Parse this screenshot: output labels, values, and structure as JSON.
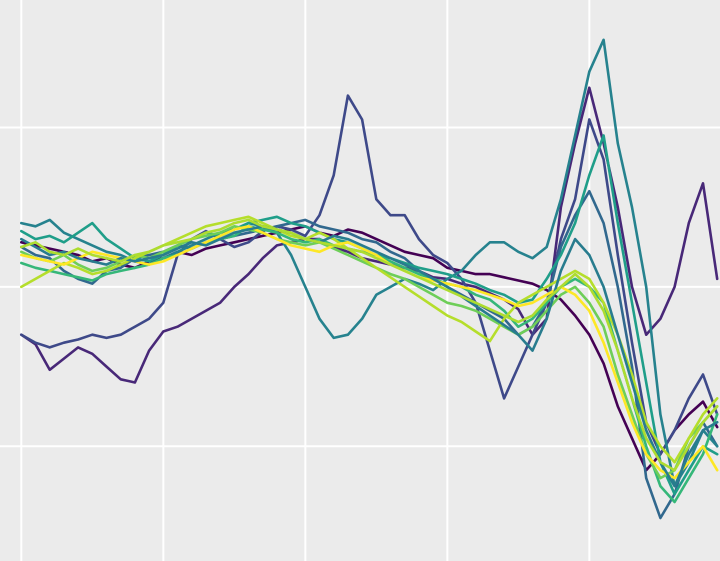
{
  "chart_data": {
    "type": "line",
    "title": "",
    "xlabel": "",
    "ylabel": "",
    "grid": true,
    "legend": "none",
    "background": "#ebebeb",
    "grid_color": "#ffffff",
    "xlim": [
      -0.15,
      4.92
    ],
    "ylim": [
      -1.72,
      1.8
    ],
    "x_gridlines": [
      0,
      1,
      2,
      3,
      4
    ],
    "y_gridlines": [
      -1,
      0,
      1
    ],
    "x": [
      0.0,
      0.1,
      0.2,
      0.3,
      0.4,
      0.5,
      0.6,
      0.7,
      0.8,
      0.9,
      1.0,
      1.1,
      1.2,
      1.3,
      1.4,
      1.5,
      1.6,
      1.7,
      1.8,
      1.9,
      2.0,
      2.1,
      2.2,
      2.3,
      2.4,
      2.5,
      2.6,
      2.7,
      2.8,
      2.9,
      3.0,
      3.1,
      3.2,
      3.3,
      3.4,
      3.5,
      3.6,
      3.7,
      3.8,
      3.9,
      4.0,
      4.1,
      4.2,
      4.3,
      4.4,
      4.5,
      4.6,
      4.7,
      4.8,
      4.9
    ],
    "series": [
      {
        "color": "#440154",
        "values": [
          0.28,
          0.26,
          0.24,
          0.22,
          0.2,
          0.16,
          0.18,
          0.14,
          0.12,
          0.16,
          0.18,
          0.22,
          0.2,
          0.24,
          0.26,
          0.28,
          0.3,
          0.32,
          0.34,
          0.36,
          0.38,
          0.34,
          0.32,
          0.36,
          0.34,
          0.3,
          0.26,
          0.22,
          0.2,
          0.18,
          0.12,
          0.1,
          0.08,
          0.08,
          0.06,
          0.04,
          0.02,
          -0.02,
          -0.08,
          -0.18,
          -0.3,
          -0.48,
          -0.75,
          -0.95,
          -1.15,
          -1.05,
          -0.9,
          -0.8,
          -0.72,
          -0.88
        ]
      },
      {
        "color": "#482878",
        "values": [
          -0.3,
          -0.36,
          -0.52,
          -0.45,
          -0.38,
          -0.42,
          -0.5,
          -0.58,
          -0.6,
          -0.4,
          -0.28,
          -0.25,
          -0.2,
          -0.15,
          -0.1,
          0.0,
          0.08,
          0.18,
          0.26,
          0.28,
          0.3,
          0.3,
          0.25,
          0.22,
          0.18,
          0.16,
          0.14,
          0.12,
          0.1,
          0.06,
          0.05,
          0.02,
          0.0,
          -0.04,
          -0.08,
          -0.14,
          -0.3,
          -0.2,
          0.5,
          0.9,
          1.25,
          0.9,
          0.5,
          0.0,
          -0.3,
          -0.2,
          0.0,
          0.4,
          0.65,
          0.05
        ]
      },
      {
        "color": "#3e4989",
        "values": [
          -0.3,
          -0.35,
          -0.38,
          -0.35,
          -0.33,
          -0.3,
          -0.32,
          -0.3,
          -0.25,
          -0.2,
          -0.1,
          0.2,
          0.3,
          0.35,
          0.3,
          0.25,
          0.28,
          0.35,
          0.38,
          0.36,
          0.32,
          0.45,
          0.7,
          1.2,
          1.05,
          0.55,
          0.45,
          0.45,
          0.3,
          0.2,
          0.15,
          0.05,
          -0.1,
          -0.4,
          -0.7,
          -0.5,
          -0.3,
          -0.1,
          0.3,
          0.55,
          1.05,
          0.8,
          0.2,
          -0.35,
          -0.85,
          -1.05,
          -0.9,
          -0.7,
          -0.55,
          -0.8
        ]
      },
      {
        "color": "#31688e",
        "values": [
          0.25,
          0.2,
          0.18,
          0.1,
          0.05,
          0.02,
          0.1,
          0.12,
          0.18,
          0.2,
          0.22,
          0.26,
          0.24,
          0.28,
          0.3,
          0.32,
          0.34,
          0.36,
          0.38,
          0.4,
          0.42,
          0.38,
          0.36,
          0.34,
          0.3,
          0.28,
          0.22,
          0.18,
          0.1,
          0.05,
          0.0,
          -0.05,
          -0.1,
          -0.15,
          -0.2,
          -0.3,
          -0.25,
          -0.1,
          0.25,
          0.45,
          0.6,
          0.4,
          0.0,
          -0.5,
          -1.2,
          -1.45,
          -1.3,
          -1.0,
          -0.85,
          -1.0
        ]
      },
      {
        "color": "#26828e",
        "values": [
          0.4,
          0.38,
          0.42,
          0.34,
          0.3,
          0.26,
          0.22,
          0.2,
          0.16,
          0.14,
          0.18,
          0.22,
          0.26,
          0.3,
          0.34,
          0.36,
          0.4,
          0.38,
          0.34,
          0.2,
          0.0,
          -0.2,
          -0.32,
          -0.3,
          -0.2,
          -0.05,
          0.0,
          0.05,
          0.02,
          -0.02,
          0.05,
          0.1,
          0.2,
          0.28,
          0.28,
          0.22,
          0.18,
          0.25,
          0.55,
          0.95,
          1.35,
          1.55,
          0.9,
          0.5,
          0.0,
          -0.8,
          -1.25,
          -1.1,
          -0.9,
          -1.0
        ]
      },
      {
        "color": "#1f9e89",
        "values": [
          0.35,
          0.3,
          0.32,
          0.28,
          0.34,
          0.4,
          0.3,
          0.24,
          0.18,
          0.16,
          0.2,
          0.26,
          0.3,
          0.34,
          0.32,
          0.36,
          0.4,
          0.42,
          0.44,
          0.4,
          0.38,
          0.34,
          0.3,
          0.28,
          0.24,
          0.2,
          0.18,
          0.15,
          0.12,
          0.1,
          0.08,
          0.05,
          0.02,
          -0.02,
          -0.05,
          -0.1,
          -0.08,
          0.05,
          0.2,
          0.4,
          0.7,
          0.95,
          0.4,
          -0.1,
          -0.6,
          -1.1,
          -1.3,
          -1.15,
          -1.0,
          -1.05
        ]
      },
      {
        "color": "#35b779",
        "values": [
          0.15,
          0.12,
          0.1,
          0.08,
          0.06,
          0.04,
          0.08,
          0.1,
          0.12,
          0.14,
          0.18,
          0.2,
          0.24,
          0.28,
          0.3,
          0.32,
          0.38,
          0.36,
          0.34,
          0.3,
          0.28,
          0.3,
          0.26,
          0.24,
          0.22,
          0.2,
          0.16,
          0.12,
          0.08,
          0.05,
          0.02,
          0.0,
          -0.05,
          -0.08,
          -0.15,
          -0.25,
          -0.2,
          -0.1,
          0.0,
          0.05,
          0.0,
          -0.1,
          -0.4,
          -0.7,
          -1.0,
          -1.25,
          -1.35,
          -1.2,
          -1.05,
          -0.8
        ]
      },
      {
        "color": "#6ece58",
        "values": [
          0.22,
          0.18,
          0.16,
          0.2,
          0.14,
          0.1,
          0.12,
          0.16,
          0.2,
          0.18,
          0.22,
          0.26,
          0.3,
          0.32,
          0.34,
          0.38,
          0.36,
          0.34,
          0.3,
          0.28,
          0.26,
          0.28,
          0.24,
          0.2,
          0.16,
          0.12,
          0.08,
          0.05,
          0.0,
          -0.05,
          -0.1,
          -0.12,
          -0.15,
          -0.2,
          -0.25,
          -0.3,
          -0.25,
          -0.15,
          -0.05,
          0.0,
          -0.1,
          -0.25,
          -0.55,
          -0.8,
          -1.05,
          -1.2,
          -1.15,
          -0.95,
          -0.85,
          -0.75
        ]
      },
      {
        "color": "#b5de2b",
        "values": [
          0.0,
          0.05,
          0.1,
          0.15,
          0.12,
          0.08,
          0.1,
          0.14,
          0.18,
          0.22,
          0.26,
          0.3,
          0.34,
          0.38,
          0.4,
          0.42,
          0.44,
          0.4,
          0.36,
          0.32,
          0.3,
          0.34,
          0.3,
          0.24,
          0.18,
          0.12,
          0.06,
          0.0,
          -0.06,
          -0.12,
          -0.18,
          -0.22,
          -0.28,
          -0.34,
          -0.2,
          -0.1,
          -0.05,
          0.0,
          0.05,
          0.1,
          0.05,
          -0.1,
          -0.3,
          -0.55,
          -0.85,
          -1.0,
          -1.1,
          -0.95,
          -0.8,
          -0.7
        ]
      },
      {
        "color": "#fde725",
        "values": [
          0.2,
          0.18,
          0.16,
          0.14,
          0.18,
          0.22,
          0.2,
          0.18,
          0.16,
          0.14,
          0.16,
          0.2,
          0.24,
          0.28,
          0.32,
          0.36,
          0.38,
          0.34,
          0.3,
          0.26,
          0.24,
          0.22,
          0.26,
          0.28,
          0.24,
          0.2,
          0.14,
          0.1,
          0.06,
          0.04,
          0.02,
          0.0,
          -0.02,
          -0.05,
          -0.08,
          -0.12,
          -0.1,
          -0.05,
          0.0,
          -0.05,
          -0.15,
          -0.35,
          -0.6,
          -0.85,
          -1.05,
          -1.15,
          -1.2,
          -1.1,
          -1.0,
          -1.15
        ]
      },
      {
        "color": "#287c8e",
        "values": [
          0.3,
          0.25,
          0.2,
          0.22,
          0.18,
          0.16,
          0.14,
          0.18,
          0.16,
          0.18,
          0.2,
          0.24,
          0.28,
          0.26,
          0.3,
          0.34,
          0.36,
          0.38,
          0.36,
          0.34,
          0.3,
          0.28,
          0.32,
          0.3,
          0.26,
          0.22,
          0.18,
          0.14,
          0.1,
          0.05,
          0.0,
          -0.06,
          -0.12,
          -0.18,
          -0.24,
          -0.3,
          -0.4,
          -0.2,
          0.1,
          0.3,
          0.2,
          0.0,
          -0.3,
          -0.6,
          -0.9,
          -1.1,
          -1.25,
          -1.05,
          -0.9,
          -0.85
        ]
      },
      {
        "color": "#addc30",
        "values": [
          0.25,
          0.28,
          0.22,
          0.2,
          0.24,
          0.2,
          0.18,
          0.16,
          0.2,
          0.22,
          0.26,
          0.28,
          0.3,
          0.34,
          0.36,
          0.4,
          0.42,
          0.38,
          0.36,
          0.34,
          0.3,
          0.28,
          0.26,
          0.24,
          0.22,
          0.18,
          0.14,
          0.1,
          0.06,
          0.02,
          -0.02,
          -0.06,
          -0.1,
          -0.14,
          -0.18,
          -0.22,
          -0.18,
          -0.08,
          0.0,
          0.08,
          0.0,
          -0.15,
          -0.4,
          -0.7,
          -0.95,
          -1.1,
          -1.15,
          -1.0,
          -0.85,
          -0.75
        ]
      }
    ]
  }
}
